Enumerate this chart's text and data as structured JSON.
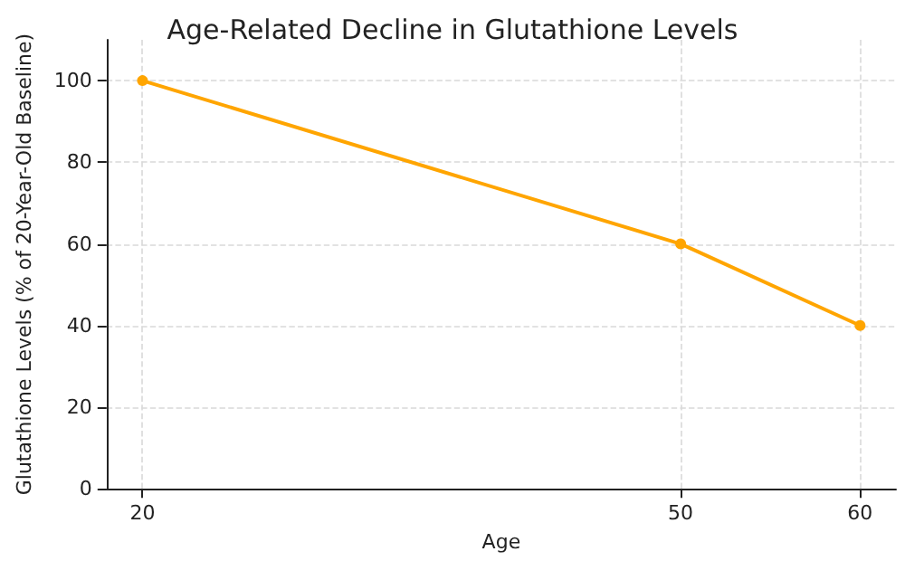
{
  "chart_data": {
    "type": "line",
    "title": "Age-Related Decline in Glutathione Levels",
    "xlabel": "Age",
    "ylabel": "Glutathione Levels (% of 20-Year-Old Baseline)",
    "x": [
      20,
      50,
      60
    ],
    "series": [
      {
        "color": "#ffa500",
        "values": [
          100,
          60,
          40
        ]
      }
    ],
    "xlim": [
      18,
      62
    ],
    "xticks": [
      20,
      50,
      60
    ],
    "ylim": [
      0,
      110
    ],
    "yticks": [
      0,
      20,
      40,
      60,
      80,
      100
    ],
    "grid": true,
    "marker": "circle",
    "line_style": "solid"
  }
}
